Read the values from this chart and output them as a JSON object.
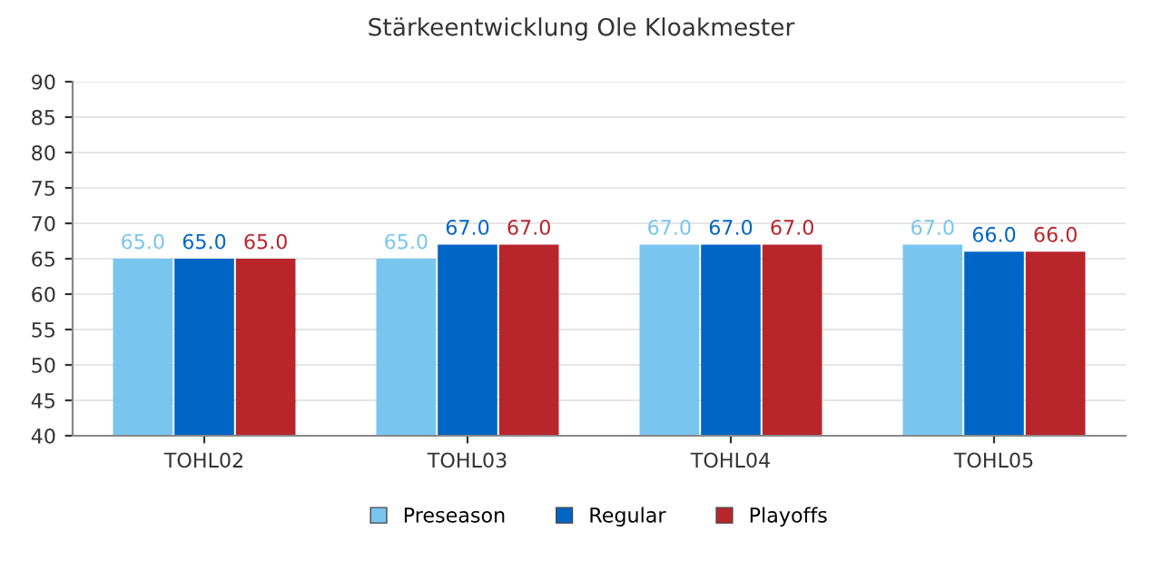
{
  "chart_data": {
    "type": "bar",
    "title": "Stärkeentwicklung Ole Kloakmester",
    "categories": [
      "TOHL02",
      "TOHL03",
      "TOHL04",
      "TOHL05"
    ],
    "series": [
      {
        "name": "Preseason",
        "color": "#78c5f0",
        "values": [
          65.0,
          65.0,
          67.0,
          67.0
        ],
        "value_labels": [
          "65.0",
          "65.0",
          "67.0",
          "67.0"
        ]
      },
      {
        "name": "Regular",
        "color": "#0066c6",
        "values": [
          65.0,
          67.0,
          67.0,
          66.0
        ],
        "value_labels": [
          "65.0",
          "67.0",
          "67.0",
          "66.0"
        ]
      },
      {
        "name": "Playoffs",
        "color": "#b8252a",
        "values": [
          65.0,
          67.0,
          67.0,
          66.0
        ],
        "value_labels": [
          "65.0",
          "67.0",
          "67.0",
          "66.0"
        ]
      }
    ],
    "ylim": [
      40,
      90
    ],
    "yticks": [
      40,
      45,
      50,
      55,
      60,
      65,
      70,
      75,
      80,
      85,
      90
    ],
    "grid": "y",
    "legend": "bottom"
  }
}
